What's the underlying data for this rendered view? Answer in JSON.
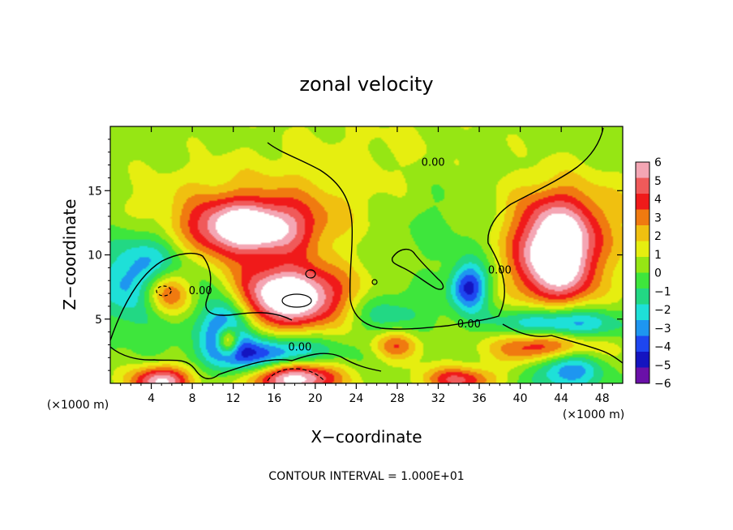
{
  "chart_data": {
    "type": "heatmap",
    "title": "zonal velocity",
    "xlabel": "X−coordinate",
    "ylabel": "Z−coordinate",
    "x_unit_left": "(×1000 m)",
    "x_unit_right": "(×1000 m)",
    "xlim": [
      0,
      50
    ],
    "ylim": [
      0,
      20
    ],
    "xticks": [
      4,
      8,
      12,
      16,
      20,
      24,
      28,
      32,
      36,
      40,
      44,
      48
    ],
    "yticks": [
      5,
      10,
      15
    ],
    "colorbar": {
      "min": -6,
      "max": 6,
      "tick_values": [
        6,
        5,
        4,
        3,
        2,
        1,
        0,
        -1,
        -2,
        -3,
        -4,
        -5,
        -6
      ],
      "tick_labels": [
        "6",
        "5",
        "4",
        "3",
        "2",
        "1",
        "0",
        "−1",
        "−2",
        "−3",
        "−4",
        "−5",
        "−6"
      ],
      "colors": [
        "#f4a6b4",
        "#f05a5a",
        "#f01a1a",
        "#f07a10",
        "#f0c010",
        "#e6ee10",
        "#96e614",
        "#3ee63c",
        "#22d884",
        "#1ee0d8",
        "#1e96f0",
        "#1e46f0",
        "#1414c0",
        "#6a10a8"
      ],
      "over_color": "#ffffff",
      "under_color": "#ffffff"
    },
    "contour_labels": [
      {
        "text": "0.00",
        "x": 31.5,
        "z": 17.2
      },
      {
        "text": "0.00",
        "x": 8.8,
        "z": 7.2
      },
      {
        "text": "0.00",
        "x": 18.5,
        "z": 2.8
      },
      {
        "text": "0.00",
        "x": 35.0,
        "z": 4.6
      },
      {
        "text": "0.00",
        "x": 38.0,
        "z": 8.8
      }
    ],
    "features": [
      {
        "x": 13.5,
        "z": 12.0,
        "sx": 4.5,
        "sz": 1.5,
        "a": 6.5
      },
      {
        "x": 17.5,
        "z": 6.8,
        "sx": 4.0,
        "sz": 1.8,
        "a": 7.5
      },
      {
        "x": 43.5,
        "z": 10.0,
        "sx": 3.0,
        "sz": 2.8,
        "a": 8.0
      },
      {
        "x": 5.5,
        "z": 7.0,
        "sx": 1.8,
        "sz": 1.4,
        "a": 7.0
      },
      {
        "x": 11.5,
        "z": 3.3,
        "sx": 0.8,
        "sz": 0.8,
        "a": 6.5
      },
      {
        "x": 5.0,
        "z": 0.2,
        "sx": 2.0,
        "sz": 0.8,
        "a": 6.0
      },
      {
        "x": 18.0,
        "z": 0.5,
        "sx": 3.0,
        "sz": 1.0,
        "a": 7.0
      },
      {
        "x": 43.0,
        "z": 3.0,
        "sx": 3.5,
        "sz": 1.0,
        "a": 6.5
      },
      {
        "x": 28.0,
        "z": 3.0,
        "sx": 1.6,
        "sz": 0.8,
        "a": 3.0
      },
      {
        "x": 34.0,
        "z": 0.3,
        "sx": 2.5,
        "sz": 0.7,
        "a": 4.0
      },
      {
        "x": 4.5,
        "z": 8.0,
        "sx": 3.5,
        "sz": 2.5,
        "a": -5.5
      },
      {
        "x": 11.5,
        "z": 4.2,
        "sx": 1.6,
        "sz": 1.8,
        "a": -5.5
      },
      {
        "x": 16.0,
        "z": 2.2,
        "sx": 4.0,
        "sz": 1.0,
        "a": -5.0
      },
      {
        "x": 35.0,
        "z": 7.5,
        "sx": 1.3,
        "sz": 1.3,
        "a": -5.0
      },
      {
        "x": 43.5,
        "z": 4.5,
        "sx": 4.0,
        "sz": 1.0,
        "a": -5.5
      },
      {
        "x": 44.5,
        "z": 1.5,
        "sx": 2.5,
        "sz": 1.5,
        "a": -4.5
      },
      {
        "x": 27.0,
        "z": 5.5,
        "sx": 3.0,
        "sz": 1.2,
        "a": -2.0
      },
      {
        "x": 34.0,
        "z": 13.5,
        "sx": 6.0,
        "sz": 3.0,
        "a": -1.2
      },
      {
        "x": 13.5,
        "z": 14.0,
        "sx": 8.0,
        "sz": 2.0,
        "a": 1.5
      },
      {
        "x": 44.0,
        "z": 13.5,
        "sx": 6.0,
        "sz": 2.0,
        "a": 1.5
      },
      {
        "x": 8.0,
        "z": 9.5,
        "sx": 3.0,
        "sz": 1.5,
        "a": 1.5
      },
      {
        "x": 27.0,
        "z": 17.0,
        "sx": 10.0,
        "sz": 3.0,
        "a": 0.8
      }
    ],
    "background_level": 0.4
  },
  "footer": {
    "contour_interval": "CONTOUR INTERVAL = 1.000E+01"
  }
}
